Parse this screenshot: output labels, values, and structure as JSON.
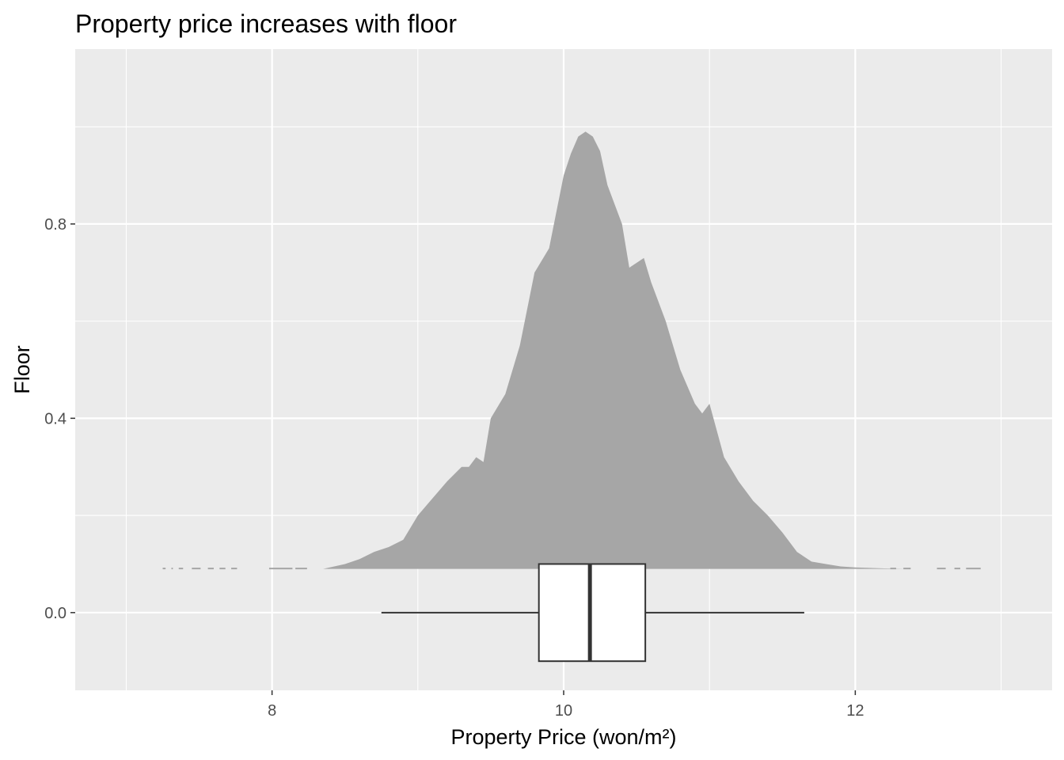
{
  "chart_data": {
    "type": "density_with_boxplot",
    "title": "Property price increases with floor",
    "xlabel": "Property Price (won/m²)",
    "ylabel": "Floor",
    "xlim": [
      6.65,
      13.35
    ],
    "ylim": [
      -0.16,
      1.16
    ],
    "x_ticks": [
      8,
      10,
      12
    ],
    "x_tick_labels": [
      "8",
      "10",
      "12"
    ],
    "y_ticks": [
      0.0,
      0.4,
      0.8
    ],
    "y_tick_labels": [
      "0.0",
      "0.4",
      "0.8"
    ],
    "grid": true,
    "density": {
      "baseline": 0.09,
      "fill": "#a6a6a6",
      "x": [
        8.35,
        8.5,
        8.6,
        8.7,
        8.8,
        8.9,
        9.0,
        9.1,
        9.2,
        9.3,
        9.35,
        9.4,
        9.45,
        9.5,
        9.6,
        9.7,
        9.8,
        9.9,
        10.0,
        10.05,
        10.1,
        10.15,
        10.2,
        10.25,
        10.3,
        10.4,
        10.45,
        10.5,
        10.55,
        10.6,
        10.7,
        10.8,
        10.9,
        10.95,
        11.0,
        11.1,
        11.2,
        11.3,
        11.4,
        11.5,
        11.6,
        11.7,
        11.8,
        11.9,
        12.0,
        12.2,
        12.35
      ],
      "y": [
        0.09,
        0.1,
        0.11,
        0.125,
        0.135,
        0.15,
        0.2,
        0.235,
        0.27,
        0.3,
        0.3,
        0.32,
        0.31,
        0.4,
        0.45,
        0.55,
        0.7,
        0.75,
        0.9,
        0.945,
        0.98,
        0.99,
        0.98,
        0.95,
        0.88,
        0.8,
        0.71,
        0.72,
        0.73,
        0.68,
        0.6,
        0.5,
        0.43,
        0.41,
        0.43,
        0.32,
        0.27,
        0.23,
        0.2,
        0.165,
        0.125,
        0.105,
        0.1,
        0.095,
        0.093,
        0.091,
        0.09
      ],
      "sparse_tail_segments": [
        [
          7.25,
          7.27
        ],
        [
          7.31,
          7.32
        ],
        [
          7.36,
          7.39
        ],
        [
          7.45,
          7.51
        ],
        [
          7.56,
          7.6
        ],
        [
          7.64,
          7.68
        ],
        [
          7.72,
          7.76
        ],
        [
          7.98,
          8.14
        ],
        [
          8.16,
          8.24
        ],
        [
          12.24,
          12.28
        ],
        [
          12.33,
          12.38
        ],
        [
          12.56,
          12.62
        ],
        [
          12.68,
          12.72
        ],
        [
          12.76,
          12.86
        ]
      ]
    },
    "boxplot": {
      "y_center": 0.0,
      "half_height": 0.1,
      "whisker_low": 8.75,
      "q1": 9.83,
      "median": 10.18,
      "q3": 10.56,
      "whisker_high": 11.65
    }
  }
}
